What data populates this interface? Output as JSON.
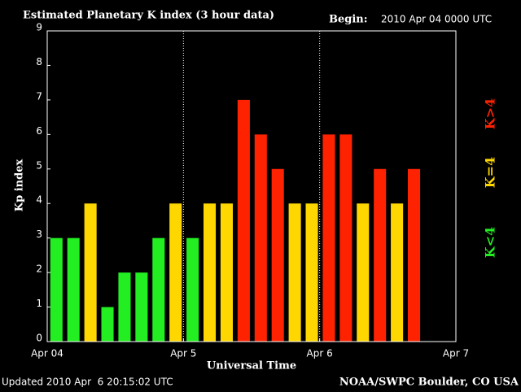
{
  "chart_data": {
    "type": "bar",
    "title": "Estimated Planetary K index (3 hour data)",
    "begin_label": "Begin:",
    "begin": "2010 Apr 04 0000 UTC",
    "ylabel": "Kp index",
    "xlabel": "Universal Time",
    "updated": "Updated 2010 Apr  6 20:15:02 UTC",
    "source": "NOAA/SWPC Boulder, CO USA",
    "x": [
      0,
      3,
      6,
      9,
      12,
      15,
      18,
      21,
      24,
      27,
      30,
      33,
      36,
      39,
      42,
      45,
      48,
      51,
      54,
      57,
      60,
      63
    ],
    "values": [
      3,
      3,
      4,
      1,
      2,
      2,
      3,
      4,
      3,
      4,
      4,
      7,
      6,
      5,
      4,
      4,
      6,
      6,
      4,
      5,
      4,
      5
    ],
    "colors": [
      "#22ee22",
      "#22ee22",
      "#ffd700",
      "#22ee22",
      "#22ee22",
      "#22ee22",
      "#22ee22",
      "#ffd700",
      "#22ee22",
      "#ffd700",
      "#ffd700",
      "#ff2200",
      "#ff2200",
      "#ff2200",
      "#ffd700",
      "#ffd700",
      "#ff2200",
      "#ff2200",
      "#ffd700",
      "#ff2200",
      "#ffd700",
      "#ff2200"
    ],
    "xlim": [
      0,
      72
    ],
    "xticks": [
      {
        "value": 0,
        "label": "Apr 04"
      },
      {
        "value": 24,
        "label": "Apr 5"
      },
      {
        "value": 48,
        "label": "Apr 6"
      },
      {
        "value": 72,
        "label": "Apr 7"
      }
    ],
    "ylim": [
      0,
      9
    ],
    "yticks": [
      0,
      1,
      2,
      3,
      4,
      5,
      6,
      7,
      8,
      9
    ],
    "legend": [
      {
        "name": "K<4",
        "color": "#22ee22"
      },
      {
        "name": "K=4",
        "color": "#ffd700"
      },
      {
        "name": "K>4",
        "color": "#ff2200"
      }
    ]
  }
}
